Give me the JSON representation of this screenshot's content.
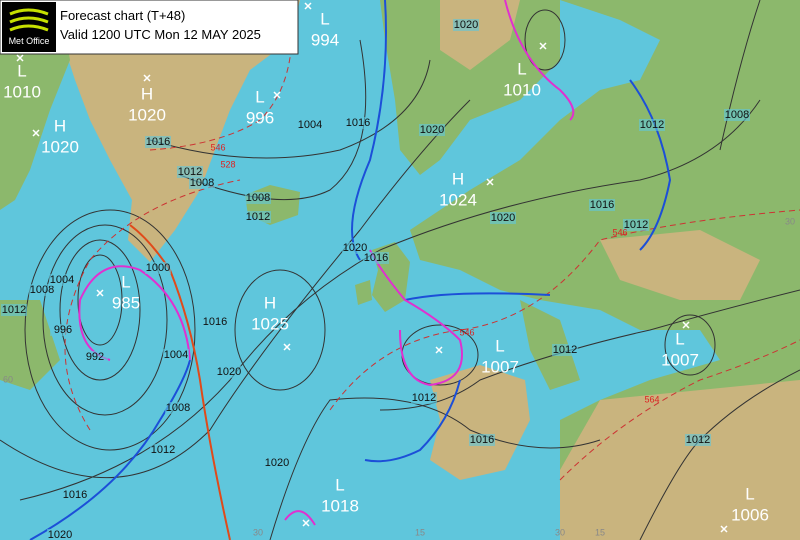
{
  "header": {
    "logo": "Met Office",
    "title": "Forecast chart (T+48)",
    "subtitle": "Valid 1200 UTC Mon 12 MAY 2025"
  },
  "pressure_centres": [
    {
      "kind": "L",
      "value": 1010
    },
    {
      "kind": "H",
      "value": 1020
    },
    {
      "kind": "H",
      "value": 1020
    },
    {
      "kind": "L",
      "value": 996
    },
    {
      "kind": "L",
      "value": 994
    },
    {
      "kind": "H",
      "value": 1024
    },
    {
      "kind": "L",
      "value": 1010
    },
    {
      "kind": "L",
      "value": 985
    },
    {
      "kind": "H",
      "value": 1025
    },
    {
      "kind": "L",
      "value": 1007
    },
    {
      "kind": "L",
      "value": 1007
    },
    {
      "kind": "L",
      "value": 1018
    },
    {
      "kind": "L",
      "value": 1006
    }
  ],
  "isobar_labels": [
    1016,
    1012,
    1008,
    1008,
    1012,
    1004,
    1016,
    1020,
    1020,
    1020,
    1016,
    1012,
    1012,
    1008,
    1020,
    1016,
    1016,
    1020,
    1020,
    1004,
    1008,
    1012,
    1016,
    1020,
    1012,
    1008,
    1004,
    1000,
    996,
    992,
    1012,
    1016,
    1012,
    1012
  ],
  "thickness_labels": [
    546,
    528,
    546,
    546,
    564
  ],
  "grid_labels": [
    30,
    15,
    30,
    15,
    30,
    60
  ]
}
